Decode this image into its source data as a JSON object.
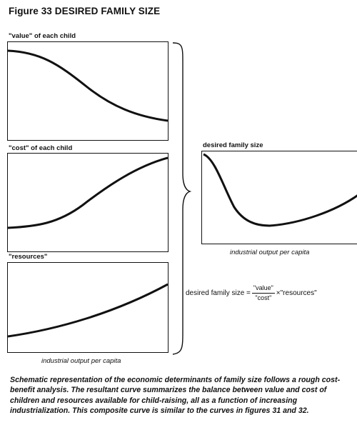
{
  "figure_title": "Figure 33 DESIRED FAMILY SIZE",
  "panels": {
    "value_label": "\"value\" of each child",
    "cost_label": "\"cost\" of each child",
    "resources_label": "\"resources\"",
    "left_x_axis": "industrial output per capita",
    "result_label": "desired family size",
    "result_x_axis": "industrial output per capita"
  },
  "formula": {
    "lhs": "desired family size =",
    "numerator": "\"value\"",
    "denominator": "\"cost\"",
    "times": "×",
    "rhs": "\"resources\""
  },
  "caption": "Schematic representation of the economic determinants of family size follows a rough cost-benefit analysis. The resultant curve summarizes the balance between value and cost of children and resources available for child-raising, all as a function of increasing industrialization. This composite curve is similar to the curves in figures 31 and 32."
}
